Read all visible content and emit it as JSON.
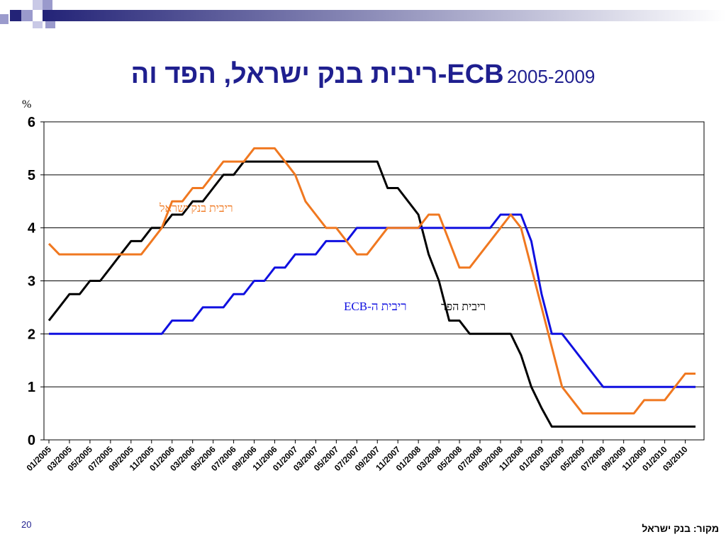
{
  "slide": {
    "title_main": "ריבית בנק ישראל, הפד וה-ECB",
    "title_years": "2005-2009",
    "slide_number": "20",
    "source": "מקור: בנק ישראל"
  },
  "colors": {
    "title": "#1f1f8f",
    "boi": "#f07820",
    "fed": "#000000",
    "ecb": "#1010e0",
    "decor_dark": "#232377",
    "decor_light": "#9a9acc"
  },
  "chart_data": {
    "type": "line",
    "ylabel": "%",
    "ylim": [
      0,
      6
    ],
    "yticks": [
      0,
      1,
      2,
      3,
      4,
      5,
      6
    ],
    "grid": true,
    "x_tick_labels": [
      "01/2005",
      "03/2005",
      "05/2005",
      "07/2005",
      "09/2005",
      "11/2005",
      "01/2006",
      "03/2006",
      "05/2006",
      "07/2006",
      "09/2006",
      "11/2006",
      "01/2007",
      "03/2007",
      "05/2007",
      "07/2007",
      "09/2007",
      "11/2007",
      "01/2008",
      "03/2008",
      "05/2008",
      "07/2008",
      "09/2008",
      "11/2008",
      "01/2009",
      "03/2009",
      "05/2009",
      "07/2009",
      "09/2009",
      "11/2009",
      "01/2010",
      "03/2010"
    ],
    "series": [
      {
        "name": "ריבית בנק ישראל",
        "color": "#f07820",
        "values": [
          3.7,
          3.5,
          3.5,
          3.5,
          3.5,
          3.5,
          3.5,
          3.5,
          3.5,
          3.5,
          3.75,
          4.0,
          4.5,
          4.5,
          4.75,
          4.75,
          5.0,
          5.25,
          5.25,
          5.25,
          5.5,
          5.5,
          5.5,
          5.25,
          5.0,
          4.5,
          4.25,
          4.0,
          4.0,
          3.75,
          3.5,
          3.5,
          3.75,
          4.0,
          4.0,
          4.0,
          4.0,
          4.25,
          4.25,
          3.75,
          3.25,
          3.25,
          3.5,
          3.75,
          4.0,
          4.25,
          4.0,
          3.25,
          2.5,
          1.75,
          1.0,
          0.75,
          0.5,
          0.5,
          0.5,
          0.5,
          0.5,
          0.5,
          0.75,
          0.75,
          0.75,
          1.0,
          1.25,
          1.25
        ]
      },
      {
        "name": "ריבית הפד",
        "color": "#000000",
        "values": [
          2.25,
          2.5,
          2.75,
          2.75,
          3.0,
          3.0,
          3.25,
          3.5,
          3.75,
          3.75,
          4.0,
          4.0,
          4.25,
          4.25,
          4.5,
          4.5,
          4.75,
          5.0,
          5.0,
          5.25,
          5.25,
          5.25,
          5.25,
          5.25,
          5.25,
          5.25,
          5.25,
          5.25,
          5.25,
          5.25,
          5.25,
          5.25,
          5.25,
          4.75,
          4.75,
          4.5,
          4.25,
          3.5,
          3.0,
          2.25,
          2.25,
          2.0,
          2.0,
          2.0,
          2.0,
          2.0,
          1.6,
          1.0,
          0.6,
          0.25,
          0.25,
          0.25,
          0.25,
          0.25,
          0.25,
          0.25,
          0.25,
          0.25,
          0.25,
          0.25,
          0.25,
          0.25,
          0.25,
          0.25
        ]
      },
      {
        "name": "ריבית ה-ECB",
        "color": "#1010e0",
        "values": [
          2.0,
          2.0,
          2.0,
          2.0,
          2.0,
          2.0,
          2.0,
          2.0,
          2.0,
          2.0,
          2.0,
          2.0,
          2.25,
          2.25,
          2.25,
          2.5,
          2.5,
          2.5,
          2.75,
          2.75,
          3.0,
          3.0,
          3.25,
          3.25,
          3.5,
          3.5,
          3.5,
          3.75,
          3.75,
          3.75,
          4.0,
          4.0,
          4.0,
          4.0,
          4.0,
          4.0,
          4.0,
          4.0,
          4.0,
          4.0,
          4.0,
          4.0,
          4.0,
          4.0,
          4.25,
          4.25,
          4.25,
          3.75,
          2.75,
          2.0,
          2.0,
          1.75,
          1.5,
          1.25,
          1.0,
          1.0,
          1.0,
          1.0,
          1.0,
          1.0,
          1.0,
          1.0,
          1.0,
          1.0
        ]
      }
    ],
    "annotations": [
      {
        "text": "ריבית בנק ישראל",
        "series": "ריבית בנק ישראל"
      },
      {
        "text": "ריבית הפד",
        "series": "ריבית הפד"
      },
      {
        "text": "ריבית ה-ECB",
        "series": "ריבית ה-ECB"
      }
    ]
  }
}
